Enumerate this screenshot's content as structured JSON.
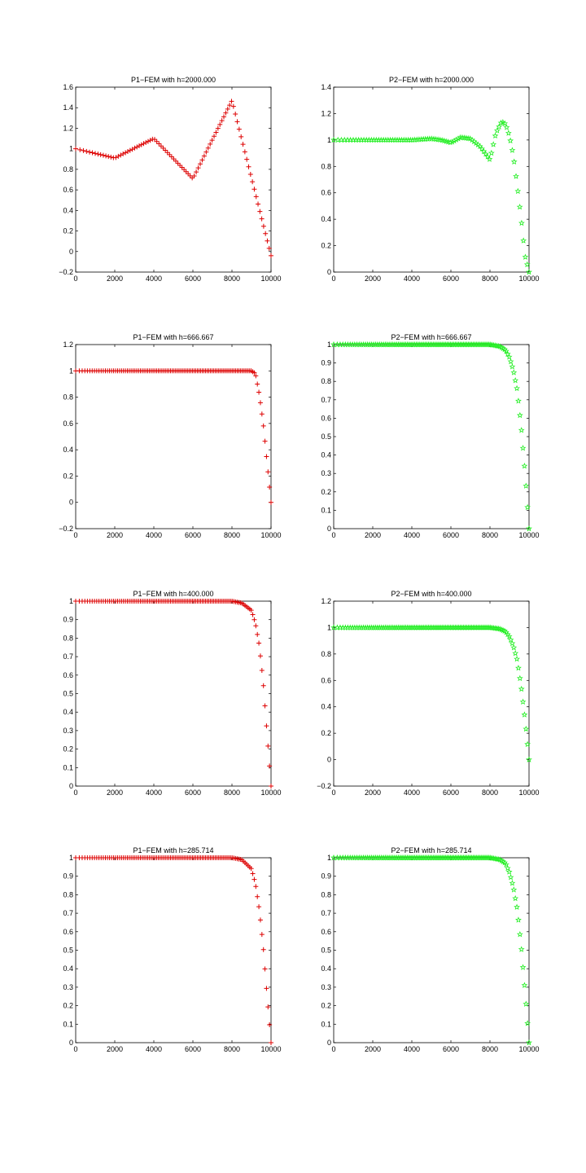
{
  "figure": {
    "colors": {
      "p1": "#dd0000",
      "p2": "#22ee22",
      "axis": "#000000",
      "background": "#ffffff"
    }
  },
  "chart_data": [
    {
      "type": "scatter",
      "title": "P1−FEM with h=2000.000",
      "marker": "plus",
      "color": "#dd0000",
      "xlim": [
        0,
        10000
      ],
      "ylim": [
        -0.2,
        1.6
      ],
      "grid": false,
      "xticks": [
        0,
        2000,
        4000,
        6000,
        8000,
        10000
      ],
      "yticks": [
        -0.2,
        0,
        0.2,
        0.4,
        0.6,
        0.8,
        1,
        1.2,
        1.4,
        1.6
      ],
      "ytick_labels": [
        "−0.2",
        "0",
        "0.2",
        "0.4",
        "0.6",
        "0.8",
        "1",
        "1.2",
        "1.4",
        "1.6"
      ],
      "x": [
        0,
        2000,
        4000,
        6000,
        8000,
        10000
      ],
      "y": [
        1.0,
        0.91,
        1.1,
        0.71,
        1.47,
        -0.04
      ]
    },
    {
      "type": "scatter",
      "title": "P2−FEM with h=2000.000",
      "marker": "star",
      "color": "#22ee22",
      "xlim": [
        0,
        10000
      ],
      "ylim": [
        0,
        1.4
      ],
      "grid": false,
      "xticks": [
        0,
        2000,
        4000,
        6000,
        8000,
        10000
      ],
      "yticks": [
        0,
        0.2,
        0.4,
        0.6,
        0.8,
        1,
        1.2,
        1.4
      ],
      "ytick_labels": [
        "0",
        "0.2",
        "0.4",
        "0.6",
        "0.8",
        "1",
        "1.2",
        "1.4"
      ],
      "x": [
        0,
        1000,
        2000,
        3000,
        4000,
        5000,
        5500,
        6000,
        6500,
        7000,
        7500,
        8000,
        8300,
        8600,
        8800,
        9000,
        9200,
        9400,
        9600,
        9800,
        10000
      ],
      "y": [
        1.0,
        1.0,
        1.0,
        1.0,
        1.0,
        1.01,
        1.0,
        0.98,
        1.02,
        1.01,
        0.95,
        0.85,
        1.05,
        1.14,
        1.12,
        1.03,
        0.88,
        0.65,
        0.4,
        0.12,
        0.0
      ]
    },
    {
      "type": "scatter",
      "title": "P1−FEM with h=666.667",
      "marker": "plus",
      "color": "#dd0000",
      "xlim": [
        0,
        10000
      ],
      "ylim": [
        -0.2,
        1.2
      ],
      "grid": false,
      "xticks": [
        0,
        2000,
        4000,
        6000,
        8000,
        10000
      ],
      "yticks": [
        -0.2,
        0,
        0.2,
        0.4,
        0.6,
        0.8,
        1,
        1.2
      ],
      "ytick_labels": [
        "−0.2",
        "0",
        "0.2",
        "0.4",
        "0.6",
        "0.8",
        "1",
        "1.2"
      ],
      "x": [
        0,
        2000,
        4000,
        6000,
        8000,
        9000,
        9200,
        9400,
        9600,
        9800,
        10000
      ],
      "y": [
        1.0,
        1.0,
        1.0,
        1.0,
        1.0,
        1.0,
        0.98,
        0.82,
        0.6,
        0.3,
        0.0
      ]
    },
    {
      "type": "scatter",
      "title": "P2−FEM with h=666.667",
      "marker": "star",
      "color": "#22ee22",
      "xlim": [
        0,
        10000
      ],
      "ylim": [
        0,
        1
      ],
      "grid": false,
      "xticks": [
        0,
        2000,
        4000,
        6000,
        8000,
        10000
      ],
      "yticks": [
        0,
        0.1,
        0.2,
        0.3,
        0.4,
        0.5,
        0.6,
        0.7,
        0.8,
        0.9,
        1
      ],
      "ytick_labels": [
        "0",
        "0.1",
        "0.2",
        "0.3",
        "0.4",
        "0.5",
        "0.6",
        "0.7",
        "0.8",
        "0.9",
        "1"
      ],
      "x": [
        0,
        2000,
        4000,
        6000,
        8000,
        8500,
        8800,
        9000,
        9200,
        9400,
        9600,
        9800,
        10000
      ],
      "y": [
        1.0,
        1.0,
        1.0,
        1.0,
        1.0,
        0.99,
        0.97,
        0.93,
        0.86,
        0.75,
        0.55,
        0.3,
        0.0
      ]
    },
    {
      "type": "scatter",
      "title": "P1−FEM with h=400.000",
      "marker": "plus",
      "color": "#dd0000",
      "xlim": [
        0,
        10000
      ],
      "ylim": [
        0,
        1
      ],
      "grid": false,
      "xticks": [
        0,
        2000,
        4000,
        6000,
        8000,
        10000
      ],
      "yticks": [
        0,
        0.1,
        0.2,
        0.3,
        0.4,
        0.5,
        0.6,
        0.7,
        0.8,
        0.9,
        1
      ],
      "ytick_labels": [
        "0",
        "0.1",
        "0.2",
        "0.3",
        "0.4",
        "0.5",
        "0.6",
        "0.7",
        "0.8",
        "0.9",
        "1"
      ],
      "x": [
        0,
        2000,
        4000,
        6000,
        8000,
        8500,
        9000,
        9200,
        9400,
        9600,
        9800,
        10000
      ],
      "y": [
        1.0,
        1.0,
        1.0,
        1.0,
        1.0,
        0.99,
        0.95,
        0.88,
        0.76,
        0.56,
        0.28,
        0.0
      ]
    },
    {
      "type": "scatter",
      "title": "P2−FEM with h=400.000",
      "marker": "star",
      "color": "#22ee22",
      "xlim": [
        0,
        10000
      ],
      "ylim": [
        -0.2,
        1.2
      ],
      "grid": false,
      "xticks": [
        0,
        2000,
        4000,
        6000,
        8000,
        10000
      ],
      "yticks": [
        -0.2,
        0,
        0.2,
        0.4,
        0.6,
        0.8,
        1,
        1.2
      ],
      "ytick_labels": [
        "−0.2",
        "0",
        "0.2",
        "0.4",
        "0.6",
        "0.8",
        "1",
        "1.2"
      ],
      "x": [
        0,
        2000,
        4000,
        6000,
        8000,
        8500,
        8800,
        9000,
        9200,
        9400,
        9600,
        9800,
        10000
      ],
      "y": [
        1.0,
        1.0,
        1.0,
        1.0,
        1.0,
        0.99,
        0.97,
        0.93,
        0.86,
        0.75,
        0.55,
        0.3,
        0.0
      ]
    },
    {
      "type": "scatter",
      "title": "P1−FEM with h=285.714",
      "marker": "plus",
      "color": "#dd0000",
      "xlim": [
        0,
        10000
      ],
      "ylim": [
        0,
        1
      ],
      "grid": false,
      "xticks": [
        0,
        2000,
        4000,
        6000,
        8000,
        10000
      ],
      "yticks": [
        0,
        0.1,
        0.2,
        0.3,
        0.4,
        0.5,
        0.6,
        0.7,
        0.8,
        0.9,
        1
      ],
      "ytick_labels": [
        "0",
        "0.1",
        "0.2",
        "0.3",
        "0.4",
        "0.5",
        "0.6",
        "0.7",
        "0.8",
        "0.9",
        "1"
      ],
      "x": [
        0,
        2000,
        4000,
        6000,
        8000,
        8500,
        9000,
        9200,
        9400,
        9600,
        9800,
        10000
      ],
      "y": [
        1.0,
        1.0,
        1.0,
        1.0,
        1.0,
        0.99,
        0.94,
        0.86,
        0.72,
        0.52,
        0.25,
        0.0
      ]
    },
    {
      "type": "scatter",
      "title": "P2−FEM with h=285.714",
      "marker": "star",
      "color": "#22ee22",
      "xlim": [
        0,
        10000
      ],
      "ylim": [
        0,
        1
      ],
      "grid": false,
      "xticks": [
        0,
        2000,
        4000,
        6000,
        8000,
        10000
      ],
      "yticks": [
        0,
        0.1,
        0.2,
        0.3,
        0.4,
        0.5,
        0.6,
        0.7,
        0.8,
        0.9,
        1
      ],
      "ytick_labels": [
        "0",
        "0.1",
        "0.2",
        "0.3",
        "0.4",
        "0.5",
        "0.6",
        "0.7",
        "0.8",
        "0.9",
        "1"
      ],
      "x": [
        0,
        2000,
        4000,
        6000,
        8000,
        8500,
        8800,
        9000,
        9200,
        9400,
        9600,
        9800,
        10000
      ],
      "y": [
        1.0,
        1.0,
        1.0,
        1.0,
        1.0,
        0.99,
        0.97,
        0.92,
        0.84,
        0.72,
        0.52,
        0.27,
        0.0
      ]
    }
  ]
}
